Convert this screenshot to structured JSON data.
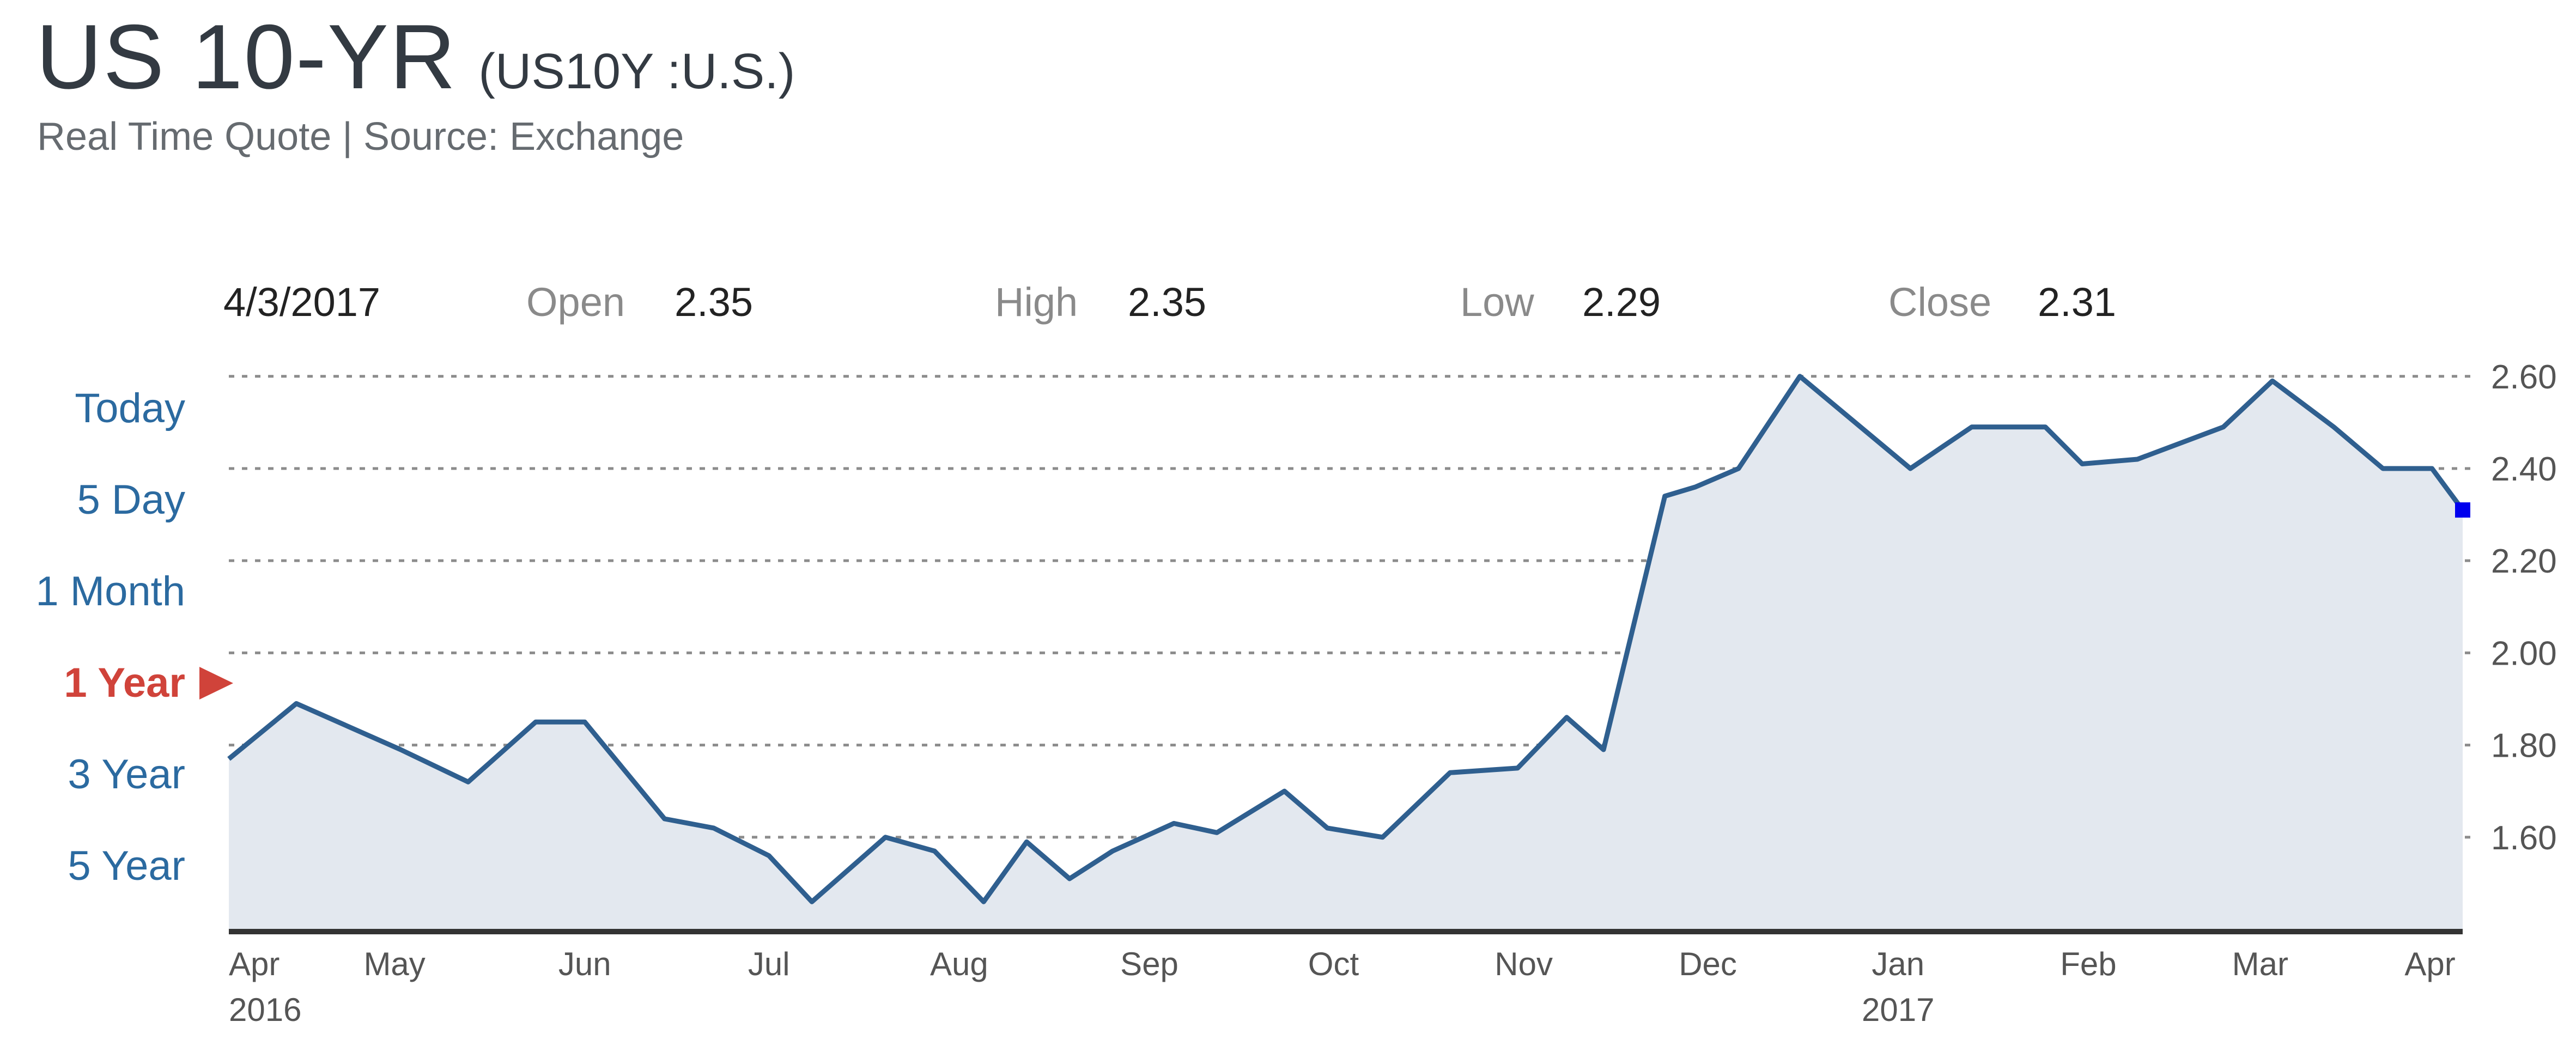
{
  "header": {
    "symbol": "US 10-YR",
    "symbol_sub": "(US10Y :U.S.)",
    "source": "Real Time Quote | Source: Exchange"
  },
  "quote": {
    "date": "4/3/2017",
    "open_label": "Open",
    "open_value": "2.35",
    "high_label": "High",
    "high_value": "2.35",
    "low_label": "Low",
    "low_value": "2.29",
    "close_label": "Close",
    "close_value": "2.31"
  },
  "ranges": {
    "items": [
      "Today",
      "5 Day",
      "1 Month",
      "1 Year",
      "3 Year",
      "5 Year"
    ],
    "active": "1 Year"
  },
  "colors": {
    "line": "#2f5f8f",
    "area": "#e3e8ef",
    "grid": "#8c8c8c",
    "axis": "#333333",
    "range_link": "#2b6aa0",
    "range_active": "#d0433a",
    "last_point": "#0000ee"
  },
  "chart_data": {
    "type": "area",
    "x_ticks": [
      "Apr",
      "May",
      "Jun",
      "Jul",
      "Aug",
      "Sep",
      "Oct",
      "Nov",
      "Dec",
      "Jan",
      "Feb",
      "Mar",
      "Apr"
    ],
    "year_labels": [
      {
        "label": "2016",
        "at": "Apr"
      },
      {
        "label": "2017",
        "at": "Jan"
      }
    ],
    "y_ticks": [
      "1.60",
      "1.80",
      "2.00",
      "2.20",
      "2.40",
      "2.60"
    ],
    "ylim": [
      1.4,
      2.66
    ],
    "y_axis_side": "right",
    "grid": "horizontal dotted",
    "series": [
      {
        "x": [
          "2016-04-04",
          "2016-04-15",
          "2016-05-02",
          "2016-05-13",
          "2016-05-24",
          "2016-06-01",
          "2016-06-14",
          "2016-06-22",
          "2016-07-01",
          "2016-07-08",
          "2016-07-20",
          "2016-07-28",
          "2016-08-05",
          "2016-08-12",
          "2016-08-19",
          "2016-08-26",
          "2016-09-05",
          "2016-09-12",
          "2016-09-23",
          "2016-09-30",
          "2016-10-09",
          "2016-10-20",
          "2016-10-31",
          "2016-11-08",
          "2016-11-14",
          "2016-11-24",
          "2016-11-29",
          "2016-12-06",
          "2016-12-16",
          "2017-01-03",
          "2017-01-13",
          "2017-01-25",
          "2017-01-31",
          "2017-02-09",
          "2017-02-23",
          "2017-03-03",
          "2017-03-13",
          "2017-03-21",
          "2017-03-29",
          "2017-04-03"
        ],
        "y": [
          1.77,
          1.89,
          1.79,
          1.72,
          1.85,
          1.85,
          1.64,
          1.62,
          1.56,
          1.46,
          1.6,
          1.57,
          1.46,
          1.59,
          1.51,
          1.57,
          1.63,
          1.61,
          1.7,
          1.62,
          1.6,
          1.74,
          1.75,
          1.86,
          1.79,
          2.34,
          2.36,
          2.4,
          2.6,
          2.4,
          2.49,
          2.49,
          2.41,
          2.42,
          2.49,
          2.59,
          2.49,
          2.4,
          2.4,
          2.31
        ]
      }
    ]
  }
}
